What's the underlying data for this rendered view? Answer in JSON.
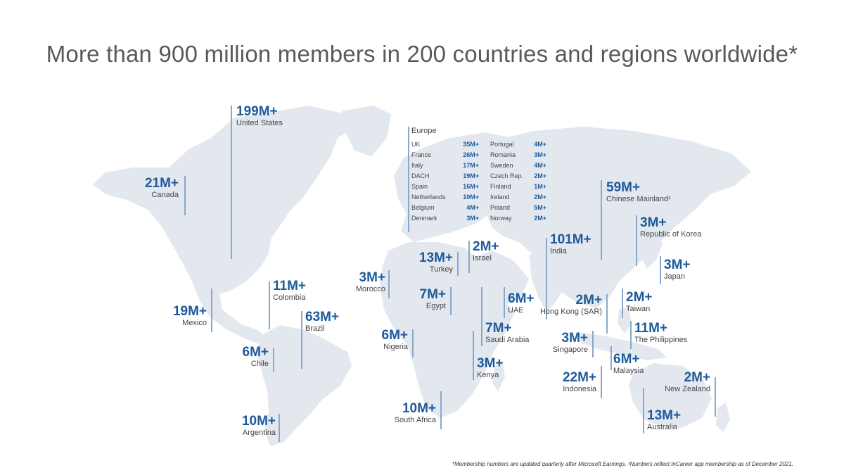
{
  "title": "More than 900 million members in 200 countries and regions worldwide*",
  "footnote": "*Membership numbers are updated quarterly after Microsoft Earnings. ¹Numbers reflect InCareer app membership as of December 2021.",
  "colors": {
    "accent": "#1d5a9c",
    "land": "#e3e8ef",
    "leader": "#8aa8cb"
  },
  "countries": {
    "united_states": {
      "value": "199M+",
      "name": "United States"
    },
    "canada": {
      "value": "21M+",
      "name": "Canada"
    },
    "mexico": {
      "value": "19M+",
      "name": "Mexico"
    },
    "colombia": {
      "value": "11M+",
      "name": "Colombia"
    },
    "brazil": {
      "value": "63M+",
      "name": "Brazil"
    },
    "chile": {
      "value": "6M+",
      "name": "Chile"
    },
    "argentina": {
      "value": "10M+",
      "name": "Argentina"
    },
    "morocco": {
      "value": "3M+",
      "name": "Morocco"
    },
    "nigeria": {
      "value": "6M+",
      "name": "Nigeria"
    },
    "south_africa": {
      "value": "10M+",
      "name": "South Africa"
    },
    "turkey": {
      "value": "13M+",
      "name": "Turkey"
    },
    "israel": {
      "value": "2M+",
      "name": "Israel"
    },
    "egypt": {
      "value": "7M+",
      "name": "Egypt"
    },
    "saudi_arabia": {
      "value": "7M+",
      "name": "Saudi Arabia"
    },
    "uae": {
      "value": "6M+",
      "name": "UAE"
    },
    "kenya": {
      "value": "3M+",
      "name": "Kenya"
    },
    "india": {
      "value": "101M+",
      "name": "India"
    },
    "chinese_mainland": {
      "value": "59M+",
      "name": "Chinese Mainland¹"
    },
    "korea": {
      "value": "3M+",
      "name": "Republic of Korea"
    },
    "japan": {
      "value": "3M+",
      "name": "Japan"
    },
    "hong_kong": {
      "value": "2M+",
      "name": "Hong Kong (SAR)"
    },
    "taiwan": {
      "value": "2M+",
      "name": "Taiwan"
    },
    "philippines": {
      "value": "11M+",
      "name": "The Philippines"
    },
    "singapore": {
      "value": "3M+",
      "name": "Singapore"
    },
    "malaysia": {
      "value": "6M+",
      "name": "Malaysia"
    },
    "indonesia": {
      "value": "22M+",
      "name": "Indonesia"
    },
    "australia": {
      "value": "13M+",
      "name": "Australia"
    },
    "new_zealand": {
      "value": "2M+",
      "name": "New Zealand"
    }
  },
  "europe": {
    "heading": "Europe",
    "col1": [
      {
        "name": "UK",
        "value": "35M+"
      },
      {
        "name": "France",
        "value": "26M+"
      },
      {
        "name": "Italy",
        "value": "17M+"
      },
      {
        "name": "DACH",
        "value": "19M+"
      },
      {
        "name": "Spain",
        "value": "16M+"
      },
      {
        "name": "Netherlands",
        "value": "10M+"
      },
      {
        "name": "Belgium",
        "value": "4M+"
      },
      {
        "name": "Denmark",
        "value": "3M+"
      }
    ],
    "col2": [
      {
        "name": "Portugal",
        "value": "4M+"
      },
      {
        "name": "Romania",
        "value": "3M+"
      },
      {
        "name": "Sweden",
        "value": "4M+"
      },
      {
        "name": "Czech Rep.",
        "value": "2M+"
      },
      {
        "name": "Finland",
        "value": "1M+"
      },
      {
        "name": "Ireland",
        "value": "2M+"
      },
      {
        "name": "Poland",
        "value": "5M+"
      },
      {
        "name": "Norway",
        "value": "2M+"
      }
    ]
  }
}
